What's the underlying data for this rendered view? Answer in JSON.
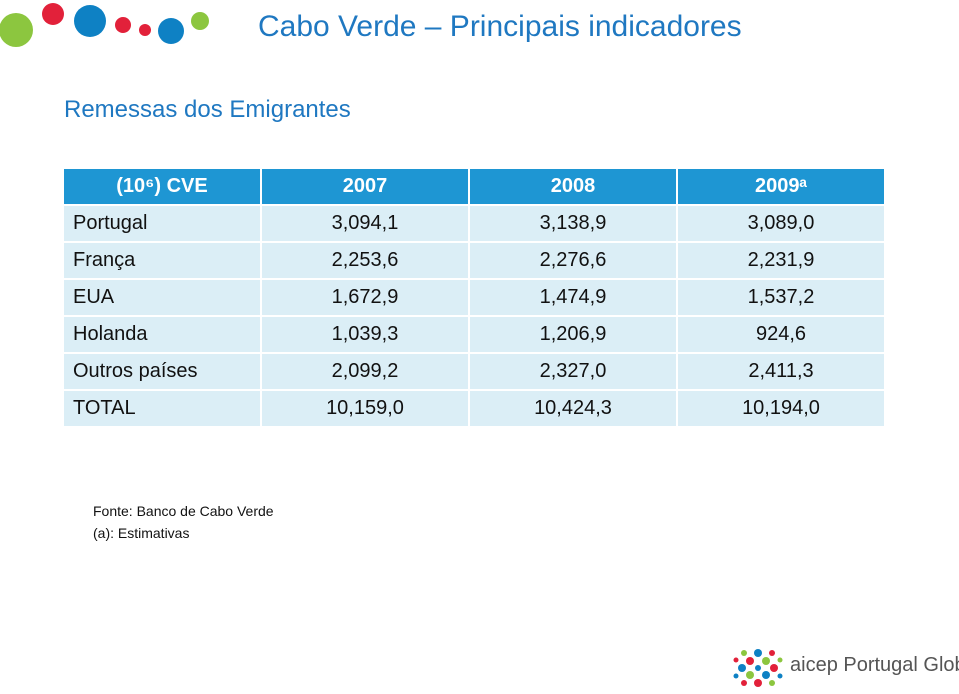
{
  "header": {
    "title": "Cabo Verde – Principais indicadores"
  },
  "subtitle": "Remessas dos Emigrantes",
  "table": {
    "columns": [
      "(10⁶) CVE",
      "2007",
      "2008",
      "2009ᵃ"
    ],
    "rows": [
      [
        "Portugal",
        "3,094,1",
        "3,138,9",
        "3,089,0"
      ],
      [
        "França",
        "2,253,6",
        "2,276,6",
        "2,231,9"
      ],
      [
        "EUA",
        "1,672,9",
        "1,474,9",
        "1,537,2"
      ],
      [
        "Holanda",
        "1,039,3",
        "1,206,9",
        "924,6"
      ],
      [
        "Outros países",
        "2,099,2",
        "2,327,0",
        "2,411,3"
      ],
      [
        "TOTAL",
        "10,159,0",
        "10,424,3",
        "10,194,0"
      ]
    ]
  },
  "notes": [
    "Fonte: Banco de Cabo Verde",
    "(a): Estimativas"
  ],
  "logo": {
    "brand": "aicep",
    "name": "Portugal Global"
  }
}
